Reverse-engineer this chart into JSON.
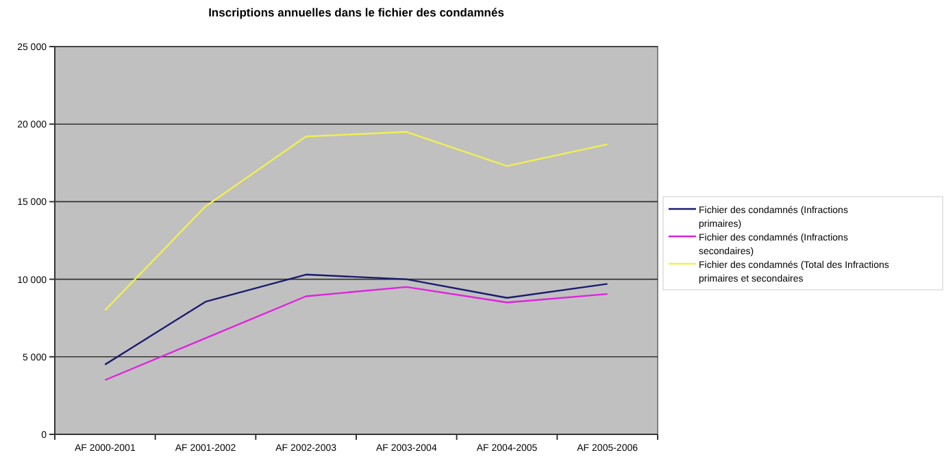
{
  "chart_data": {
    "type": "line",
    "title": "Inscriptions annuelles dans le fichier des condamnés",
    "categories": [
      "AF 2000-2001",
      "AF 2001-2002",
      "AF 2002-2003",
      "AF 2003-2004",
      "AF 2004-2005",
      "AF 2005-2006"
    ],
    "series": [
      {
        "name": "Fichier des condamnés (Infractions primaires)",
        "color": "#1a1a6e",
        "values": [
          4500,
          8550,
          10300,
          10000,
          8800,
          9700
        ]
      },
      {
        "name": "Fichier des condamnés (Infractions secondaires)",
        "color": "#e020e0",
        "values": [
          3500,
          6200,
          8900,
          9500,
          8500,
          9050
        ]
      },
      {
        "name": "Fichier des condamnés (Total des Infractions primaires et secondaires",
        "color": "#f0f050",
        "values": [
          8000,
          14700,
          19200,
          19500,
          17300,
          18700
        ]
      }
    ],
    "ylim": [
      0,
      25000
    ],
    "yticks": [
      {
        "value": 0,
        "label": "0"
      },
      {
        "value": 5000,
        "label": "5 000"
      },
      {
        "value": 10000,
        "label": "10 000"
      },
      {
        "value": 15000,
        "label": "15 000"
      },
      {
        "value": 20000,
        "label": "20 000"
      },
      {
        "value": 25000,
        "label": "25 000"
      }
    ],
    "grid": "y",
    "legend": "right",
    "marker": "none",
    "line_style": "solid"
  }
}
